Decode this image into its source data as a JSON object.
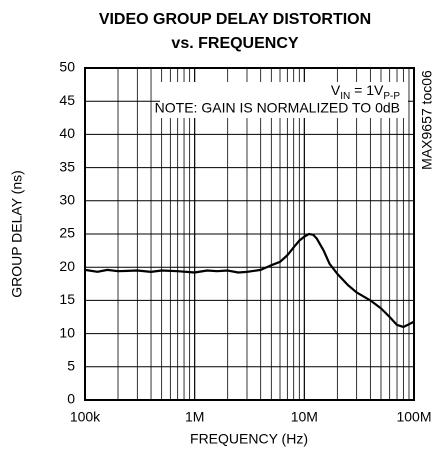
{
  "chart_data": {
    "type": "line",
    "title": [
      "VIDEO GROUP DELAY DISTORTION",
      "vs. FREQUENCY"
    ],
    "xlabel": "FREQUENCY (Hz)",
    "ylabel": "GROUP DELAY (ns)",
    "annotation_parts": [
      "V",
      "IN",
      " = 1V",
      "P-P"
    ],
    "note": "NOTE: GAIN IS NORMALIZED TO 0dB",
    "side_label": "MAX9657 toc06",
    "xscale": "log",
    "grid": true,
    "color": "#000000",
    "xlim": [
      100000,
      100000000
    ],
    "xticks": [
      {
        "value": 100000,
        "label": "100k"
      },
      {
        "value": 1000000,
        "label": "1M"
      },
      {
        "value": 10000000,
        "label": "10M"
      },
      {
        "value": 100000000,
        "label": "100M"
      }
    ],
    "ylim": [
      0,
      50
    ],
    "yticks": [
      0,
      5,
      10,
      15,
      20,
      25,
      30,
      35,
      40,
      45,
      50
    ],
    "x": [
      100000,
      130000,
      160000,
      200000,
      300000,
      400000,
      500000,
      700000,
      1000000,
      1300000,
      1600000,
      2000000,
      2500000,
      3000000,
      4000000,
      5000000,
      6000000,
      7000000,
      8000000,
      9000000,
      10000000,
      11000000,
      12000000,
      13000000,
      15000000,
      17000000,
      20000000,
      25000000,
      30000000,
      40000000,
      50000000,
      60000000,
      70000000,
      80000000,
      90000000,
      100000000
    ],
    "values": [
      19.6,
      19.3,
      19.6,
      19.4,
      19.5,
      19.3,
      19.5,
      19.4,
      19.2,
      19.5,
      19.4,
      19.5,
      19.2,
      19.3,
      19.6,
      20.3,
      20.8,
      21.8,
      23,
      24,
      24.6,
      25,
      24.9,
      24.3,
      22.5,
      20.5,
      19,
      17.3,
      16.2,
      15,
      13.8,
      12.5,
      11.3,
      11,
      11.4,
      11.8
    ]
  }
}
